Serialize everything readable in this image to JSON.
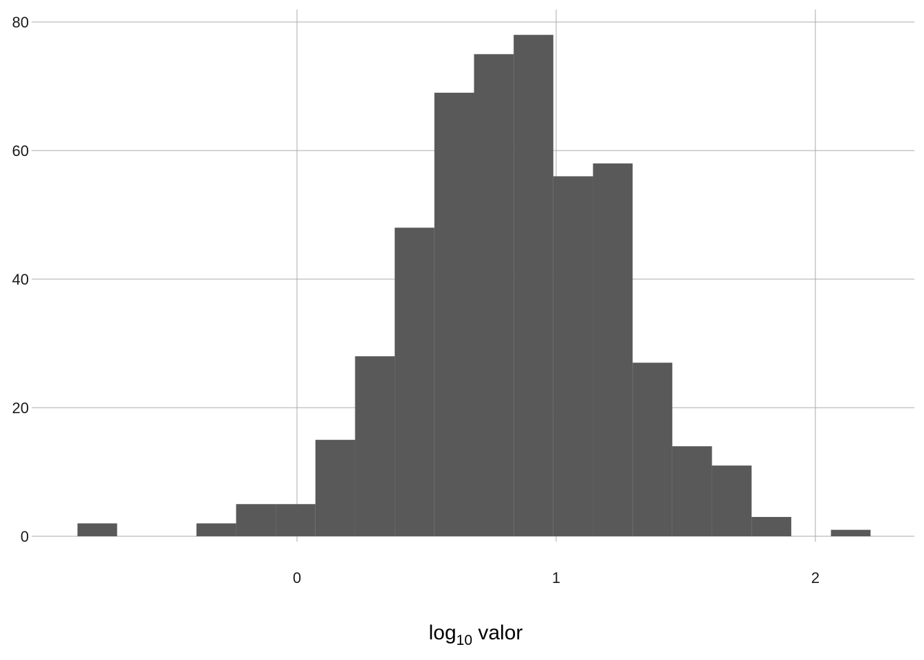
{
  "chart_data": {
    "type": "bar",
    "subtype": "histogram",
    "title": "",
    "xlabel_base": "log",
    "xlabel_sub": "10",
    "xlabel_rest": " valor",
    "ylabel": "",
    "xlim": [
      -1.0,
      2.37
    ],
    "ylim": [
      0,
      82
    ],
    "x_ticks": [
      0,
      1,
      2
    ],
    "y_ticks": [
      0,
      20,
      40,
      60,
      80
    ],
    "grid": true,
    "legend": "none",
    "bar_color": "#595959",
    "bins": [
      {
        "x0": -0.847,
        "x1": -0.694,
        "count": 2
      },
      {
        "x0": -0.694,
        "x1": -0.541,
        "count": 0
      },
      {
        "x0": -0.541,
        "x1": -0.388,
        "count": 0
      },
      {
        "x0": -0.388,
        "x1": -0.235,
        "count": 2
      },
      {
        "x0": -0.235,
        "x1": -0.082,
        "count": 5
      },
      {
        "x0": -0.082,
        "x1": 0.071,
        "count": 5
      },
      {
        "x0": 0.071,
        "x1": 0.224,
        "count": 15
      },
      {
        "x0": 0.224,
        "x1": 0.377,
        "count": 28
      },
      {
        "x0": 0.377,
        "x1": 0.53,
        "count": 48
      },
      {
        "x0": 0.53,
        "x1": 0.683,
        "count": 69
      },
      {
        "x0": 0.683,
        "x1": 0.836,
        "count": 75
      },
      {
        "x0": 0.836,
        "x1": 0.989,
        "count": 78
      },
      {
        "x0": 0.989,
        "x1": 1.142,
        "count": 56
      },
      {
        "x0": 1.142,
        "x1": 1.295,
        "count": 58
      },
      {
        "x0": 1.295,
        "x1": 1.448,
        "count": 27
      },
      {
        "x0": 1.448,
        "x1": 1.601,
        "count": 14
      },
      {
        "x0": 1.601,
        "x1": 1.754,
        "count": 11
      },
      {
        "x0": 1.754,
        "x1": 1.907,
        "count": 3
      },
      {
        "x0": 1.907,
        "x1": 2.06,
        "count": 0
      },
      {
        "x0": 2.06,
        "x1": 2.213,
        "count": 1
      }
    ]
  }
}
